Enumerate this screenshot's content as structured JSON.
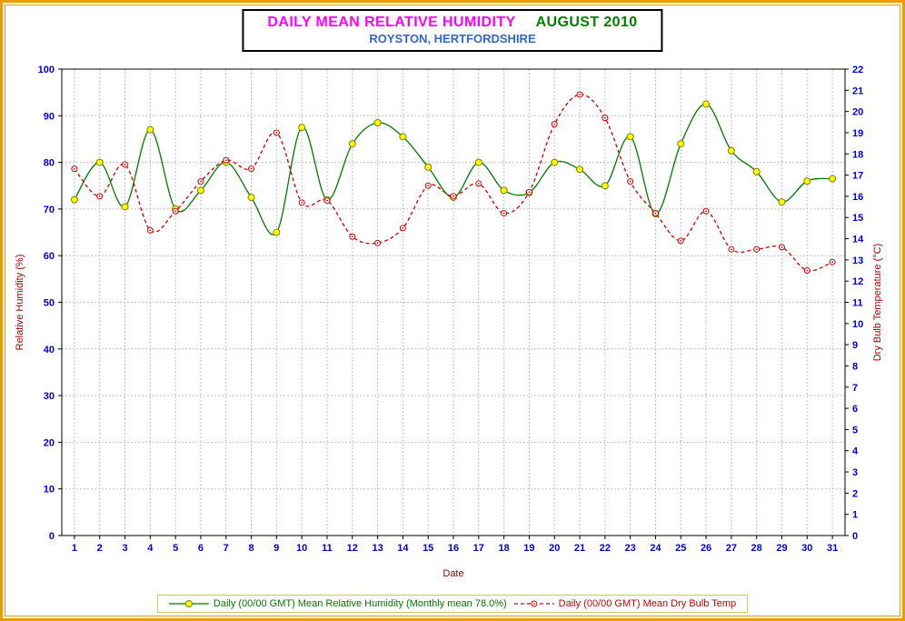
{
  "title": {
    "main": "DAILY MEAN RELATIVE HUMIDITY",
    "period": "AUGUST 2010",
    "subtitle": "ROYSTON, HERTFORDSHIRE"
  },
  "colors": {
    "frame": "#EC9B00",
    "title_main": "#FF00FF",
    "title_period": "#008000",
    "subtitle": "#3366CC",
    "tick_label": "#0000CC",
    "axis_title": "#990000",
    "grid": "#C0C0C0",
    "plot_border": "#000000",
    "legend_border": "#C9C95A"
  },
  "chart_data": {
    "type": "line",
    "title": "DAILY MEAN RELATIVE HUMIDITY AUGUST 2010",
    "subtitle": "ROYSTON, HERTFORDSHIRE",
    "xlabel": "Date",
    "x": [
      1,
      2,
      3,
      4,
      5,
      6,
      7,
      8,
      9,
      10,
      11,
      12,
      13,
      14,
      15,
      16,
      17,
      18,
      19,
      20,
      21,
      22,
      23,
      24,
      25,
      26,
      27,
      28,
      29,
      30,
      31
    ],
    "left_axis": {
      "label": "Relative Humidity (%)",
      "min": 0,
      "max": 100,
      "tick_step": 10
    },
    "right_axis": {
      "label": "Dry Bulb Temperature (°C)",
      "min": 0,
      "max": 22,
      "tick_step": 1
    },
    "grid": true,
    "legend_position": "bottom",
    "series": [
      {
        "name": "Daily (00/00 GMT) Mean Relative Humidity (Monthly mean 78.0%)",
        "axis": "left",
        "color": "#007A00",
        "dash": "",
        "marker_fill": "#FFFF00",
        "marker_stroke": "#808000",
        "marker_radius": 3.5,
        "marker_dot": false,
        "values": [
          72,
          80,
          70.5,
          87,
          70,
          74,
          80,
          72.5,
          65,
          87.5,
          72,
          84,
          88.5,
          85.5,
          79,
          72.5,
          80,
          74,
          73.5,
          80,
          78.5,
          75,
          85.5,
          69,
          84,
          92.5,
          82.5,
          78,
          71.5,
          76,
          76.5
        ]
      },
      {
        "name": "Daily (00/00 GMT) Mean Dry Bulb Temp",
        "axis": "right",
        "color": "#CC0000",
        "dash": "4 3",
        "marker_fill": "#FFFFFF",
        "marker_stroke": "#CC0000",
        "marker_radius": 3,
        "marker_dot": true,
        "values": [
          17.3,
          16.0,
          17.5,
          14.4,
          15.3,
          16.7,
          17.7,
          17.3,
          19.0,
          15.7,
          15.8,
          14.1,
          13.8,
          14.5,
          16.5,
          16.0,
          16.6,
          15.2,
          16.2,
          19.4,
          20.8,
          19.7,
          16.7,
          15.2,
          13.9,
          15.3,
          13.5,
          13.5,
          13.6,
          12.5,
          12.9
        ]
      }
    ]
  }
}
